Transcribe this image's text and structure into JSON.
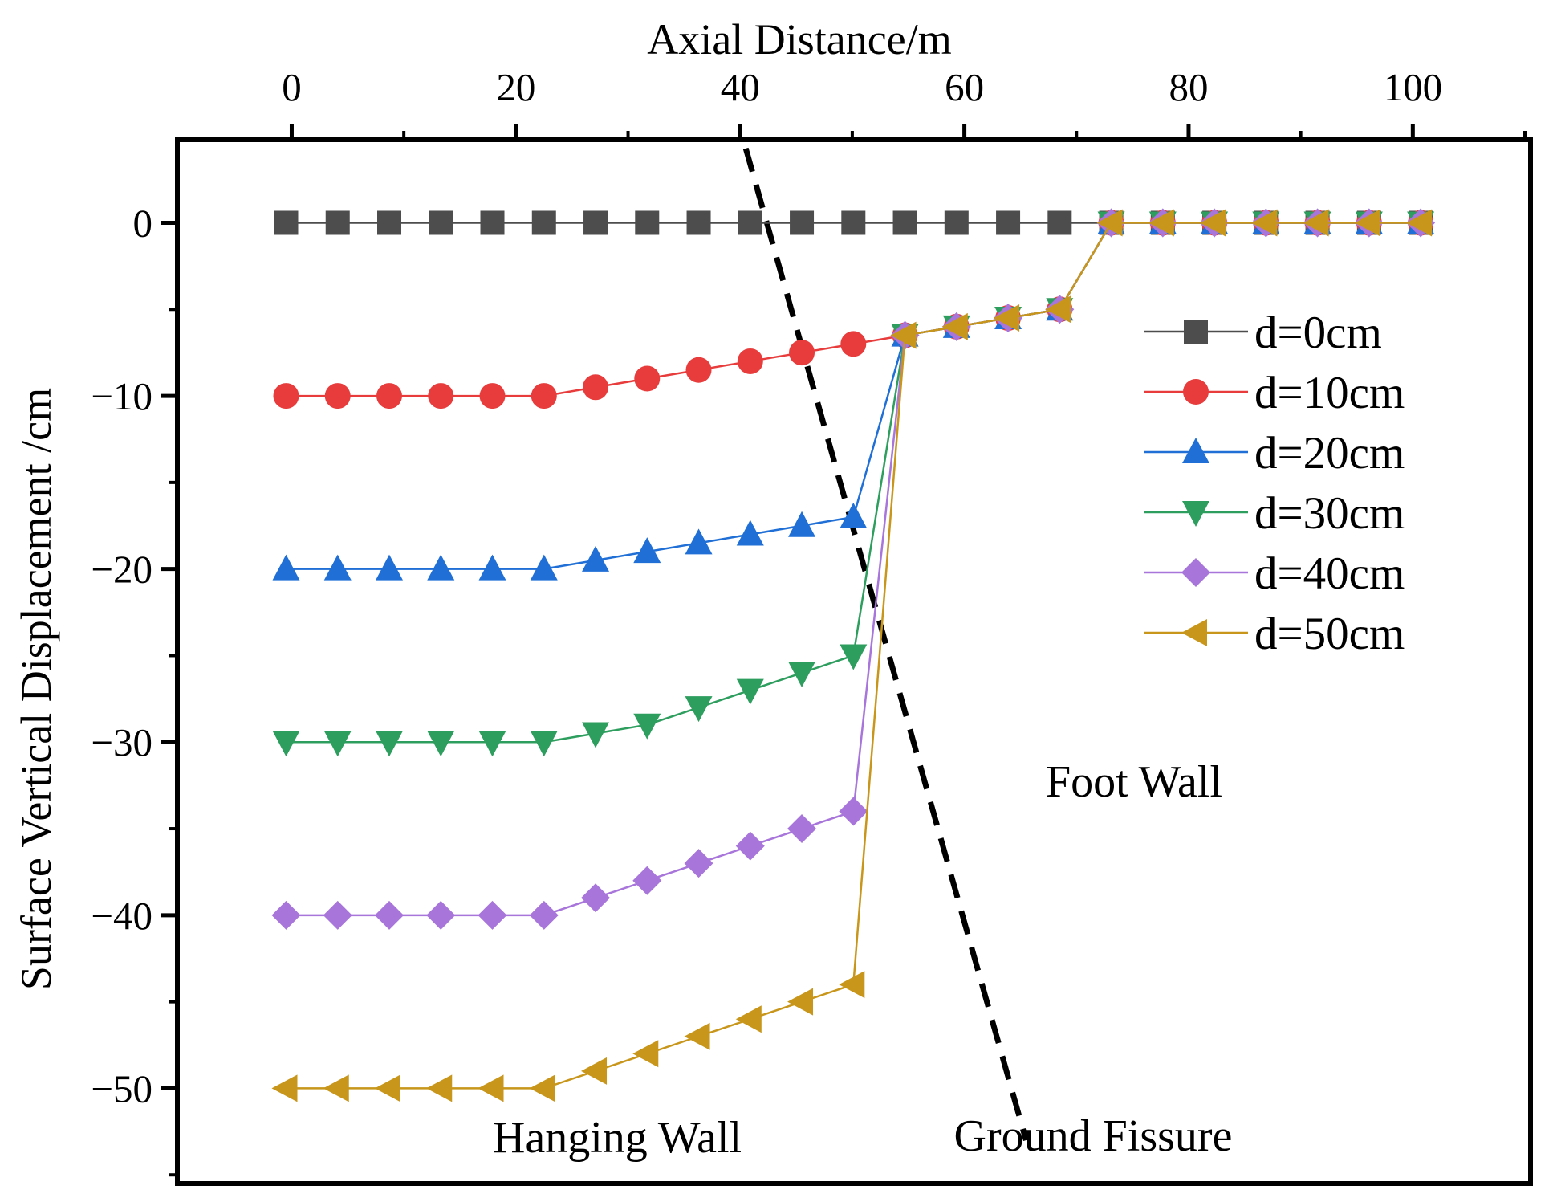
{
  "chart_data": {
    "type": "line",
    "xlabel": "Axial Distance/m",
    "ylabel": "Surface Vertical Displacement /cm",
    "xlim": [
      -10.2,
      110.5
    ],
    "ylim": [
      -55.5,
      4.8
    ],
    "x_axis_position": "top",
    "xticks": [
      0,
      20,
      40,
      60,
      80,
      100
    ],
    "xtick_labels": [
      "0",
      "20",
      "40",
      "60",
      "80",
      "100"
    ],
    "yticks": [
      0,
      -10,
      -20,
      -30,
      -40,
      -50
    ],
    "ytick_labels": [
      "0",
      "−10",
      "−20",
      "−30",
      "−40",
      "−50"
    ],
    "x": [
      -0.5,
      4.1,
      8.7,
      13.3,
      17.9,
      22.5,
      27.1,
      31.7,
      36.3,
      40.9,
      45.5,
      50.1,
      54.7,
      59.3,
      63.9,
      68.5,
      73.1,
      77.7,
      82.3,
      86.9,
      91.5,
      96.1,
      100.7
    ],
    "series": [
      {
        "name": "d=0cm",
        "color": "#4d4d4d",
        "marker": "square",
        "values": [
          0,
          0,
          0,
          0,
          0,
          0,
          0,
          0,
          0,
          0,
          0,
          0,
          0,
          0,
          0,
          0,
          0,
          0,
          0,
          0,
          0,
          0,
          0
        ]
      },
      {
        "name": "d=10cm",
        "color": "#e83c3c",
        "marker": "circle",
        "values": [
          -10,
          -10,
          -10,
          -10,
          -10,
          -10,
          -9.5,
          -9,
          -8.5,
          -8,
          -7.5,
          -7,
          -6.5,
          -6,
          -5.5,
          -5,
          0,
          0,
          0,
          0,
          0,
          0,
          0
        ]
      },
      {
        "name": "d=20cm",
        "color": "#1f6fd6",
        "marker": "triangle-up",
        "values": [
          -20,
          -20,
          -20,
          -20,
          -20,
          -20,
          -19.5,
          -19,
          -18.5,
          -18,
          -17.5,
          -17,
          -6.5,
          -6,
          -5.5,
          -5,
          0,
          0,
          0,
          0,
          0,
          0,
          0
        ]
      },
      {
        "name": "d=30cm",
        "color": "#2e9e5e",
        "marker": "triangle-down",
        "values": [
          -30,
          -30,
          -30,
          -30,
          -30,
          -30,
          -29.5,
          -29,
          -28,
          -27,
          -26,
          -25,
          -6.5,
          -6,
          -5.5,
          -5,
          0,
          0,
          0,
          0,
          0,
          0,
          0
        ]
      },
      {
        "name": "d=40cm",
        "color": "#a875db",
        "marker": "diamond",
        "values": [
          -40,
          -40,
          -40,
          -40,
          -40,
          -40,
          -39,
          -38,
          -37,
          -36,
          -35,
          -34,
          -6.5,
          -6,
          -5.5,
          -5,
          0,
          0,
          0,
          0,
          0,
          0,
          0
        ]
      },
      {
        "name": "d=50cm",
        "color": "#c8961a",
        "marker": "triangle-left",
        "values": [
          -50,
          -50,
          -50,
          -50,
          -50,
          -50,
          -49,
          -48,
          -47,
          -46,
          -45,
          -44,
          -6.5,
          -6,
          -5.5,
          -5,
          0,
          0,
          0,
          0,
          0,
          0,
          0
        ]
      }
    ],
    "ground_fissure_line": {
      "x": [
        40.5,
        65.5
      ],
      "y": [
        4.3,
        -53.0
      ]
    },
    "annotations": {
      "foot_wall": "Foot Wall",
      "hanging_wall": "Hanging Wall",
      "ground_fissure": "Ground Fissure"
    },
    "legend_position": "right"
  }
}
